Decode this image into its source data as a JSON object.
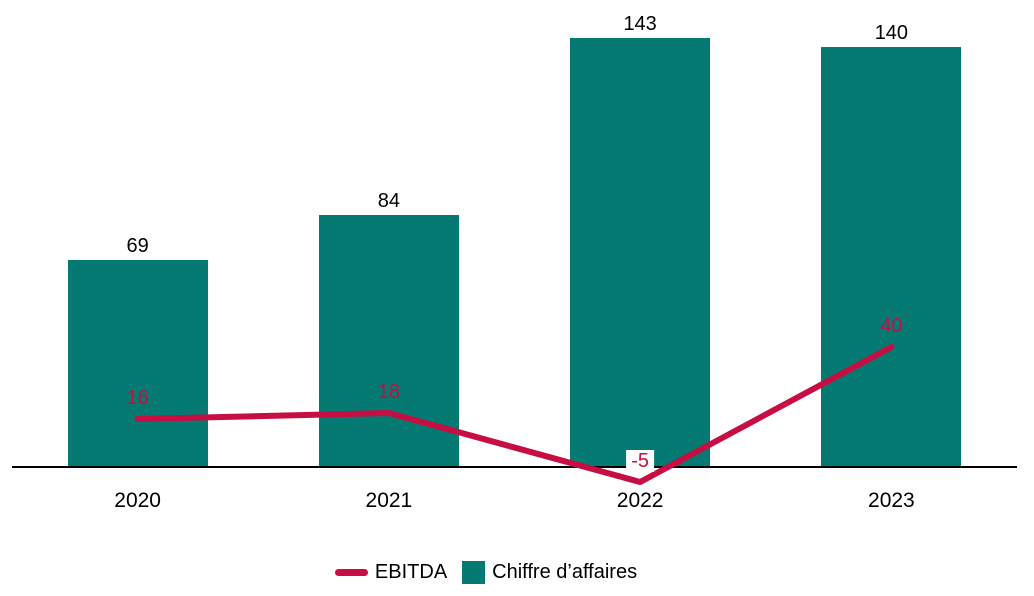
{
  "chart_data": {
    "type": "combo",
    "title": "",
    "xlabel": "",
    "ylabel": "",
    "categories": [
      "2020",
      "2021",
      "2022",
      "2023"
    ],
    "series": [
      {
        "name": "EBITDA",
        "type": "line",
        "color": "#C60E43",
        "values": [
          16,
          18,
          -5,
          40
        ]
      },
      {
        "name": "Chiffre d’affaires",
        "type": "bar",
        "color": "#047A72",
        "values": [
          69,
          84,
          143,
          140
        ]
      }
    ],
    "data_labels_visible": true,
    "ylim": [
      -20,
      156
    ],
    "grid": false,
    "y_axis_visible": false,
    "x_axis_visible": true,
    "axis_color": "#000000",
    "data_label_color_bar": "#000000",
    "background": "#FFFFFF",
    "legend_position": "bottom"
  }
}
